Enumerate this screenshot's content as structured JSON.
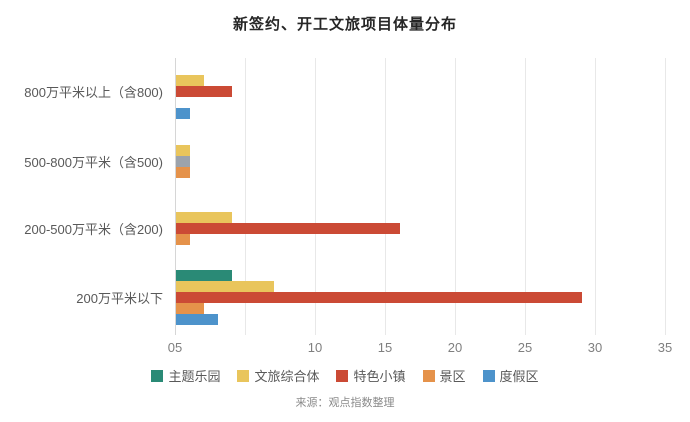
{
  "title": "新签约、开工文旅项目体量分布",
  "source_note": "来源：观点指数整理",
  "chart_data": {
    "type": "bar",
    "orientation": "horizontal",
    "title": "新签约、开工文旅项目体量分布",
    "categories": [
      "800万平米以上（含800)",
      "500-800万平米（含500)",
      "200-500万平米（含200)",
      "200万平米以下"
    ],
    "series": [
      {
        "name": "主题乐园",
        "color": "#2a8a76",
        "values": [
          0,
          0,
          0,
          4
        ]
      },
      {
        "name": "文旅综合体",
        "color": "#e9c55c",
        "values": [
          2,
          1,
          4,
          7
        ]
      },
      {
        "name": "特色小镇",
        "color": "#cb4a35",
        "values": [
          4,
          1,
          16,
          29
        ]
      },
      {
        "name": "景区",
        "color": "#e5924a",
        "values": [
          0,
          1,
          1,
          2
        ]
      },
      {
        "name": "度假区",
        "color": "#4d93cb",
        "values": [
          1,
          0,
          0,
          3
        ]
      }
    ],
    "color_overrides": [
      {
        "series_index": 2,
        "category_index": 1,
        "color": "#9ca3ac",
        "note": "特色小镇 bar in 500-800 category renders gray in source image"
      }
    ],
    "xlim": [
      0,
      35
    ],
    "x_ticks": [
      0,
      5,
      10,
      15,
      20,
      25,
      30,
      35
    ],
    "x_tick_labels": [
      "05",
      "",
      "10",
      "15",
      "20",
      "25",
      "30",
      "35"
    ],
    "grid": "vertical",
    "legend_position": "bottom",
    "grid_color": "#e8e8e8",
    "axis_line_color": "#d6d6d6"
  }
}
